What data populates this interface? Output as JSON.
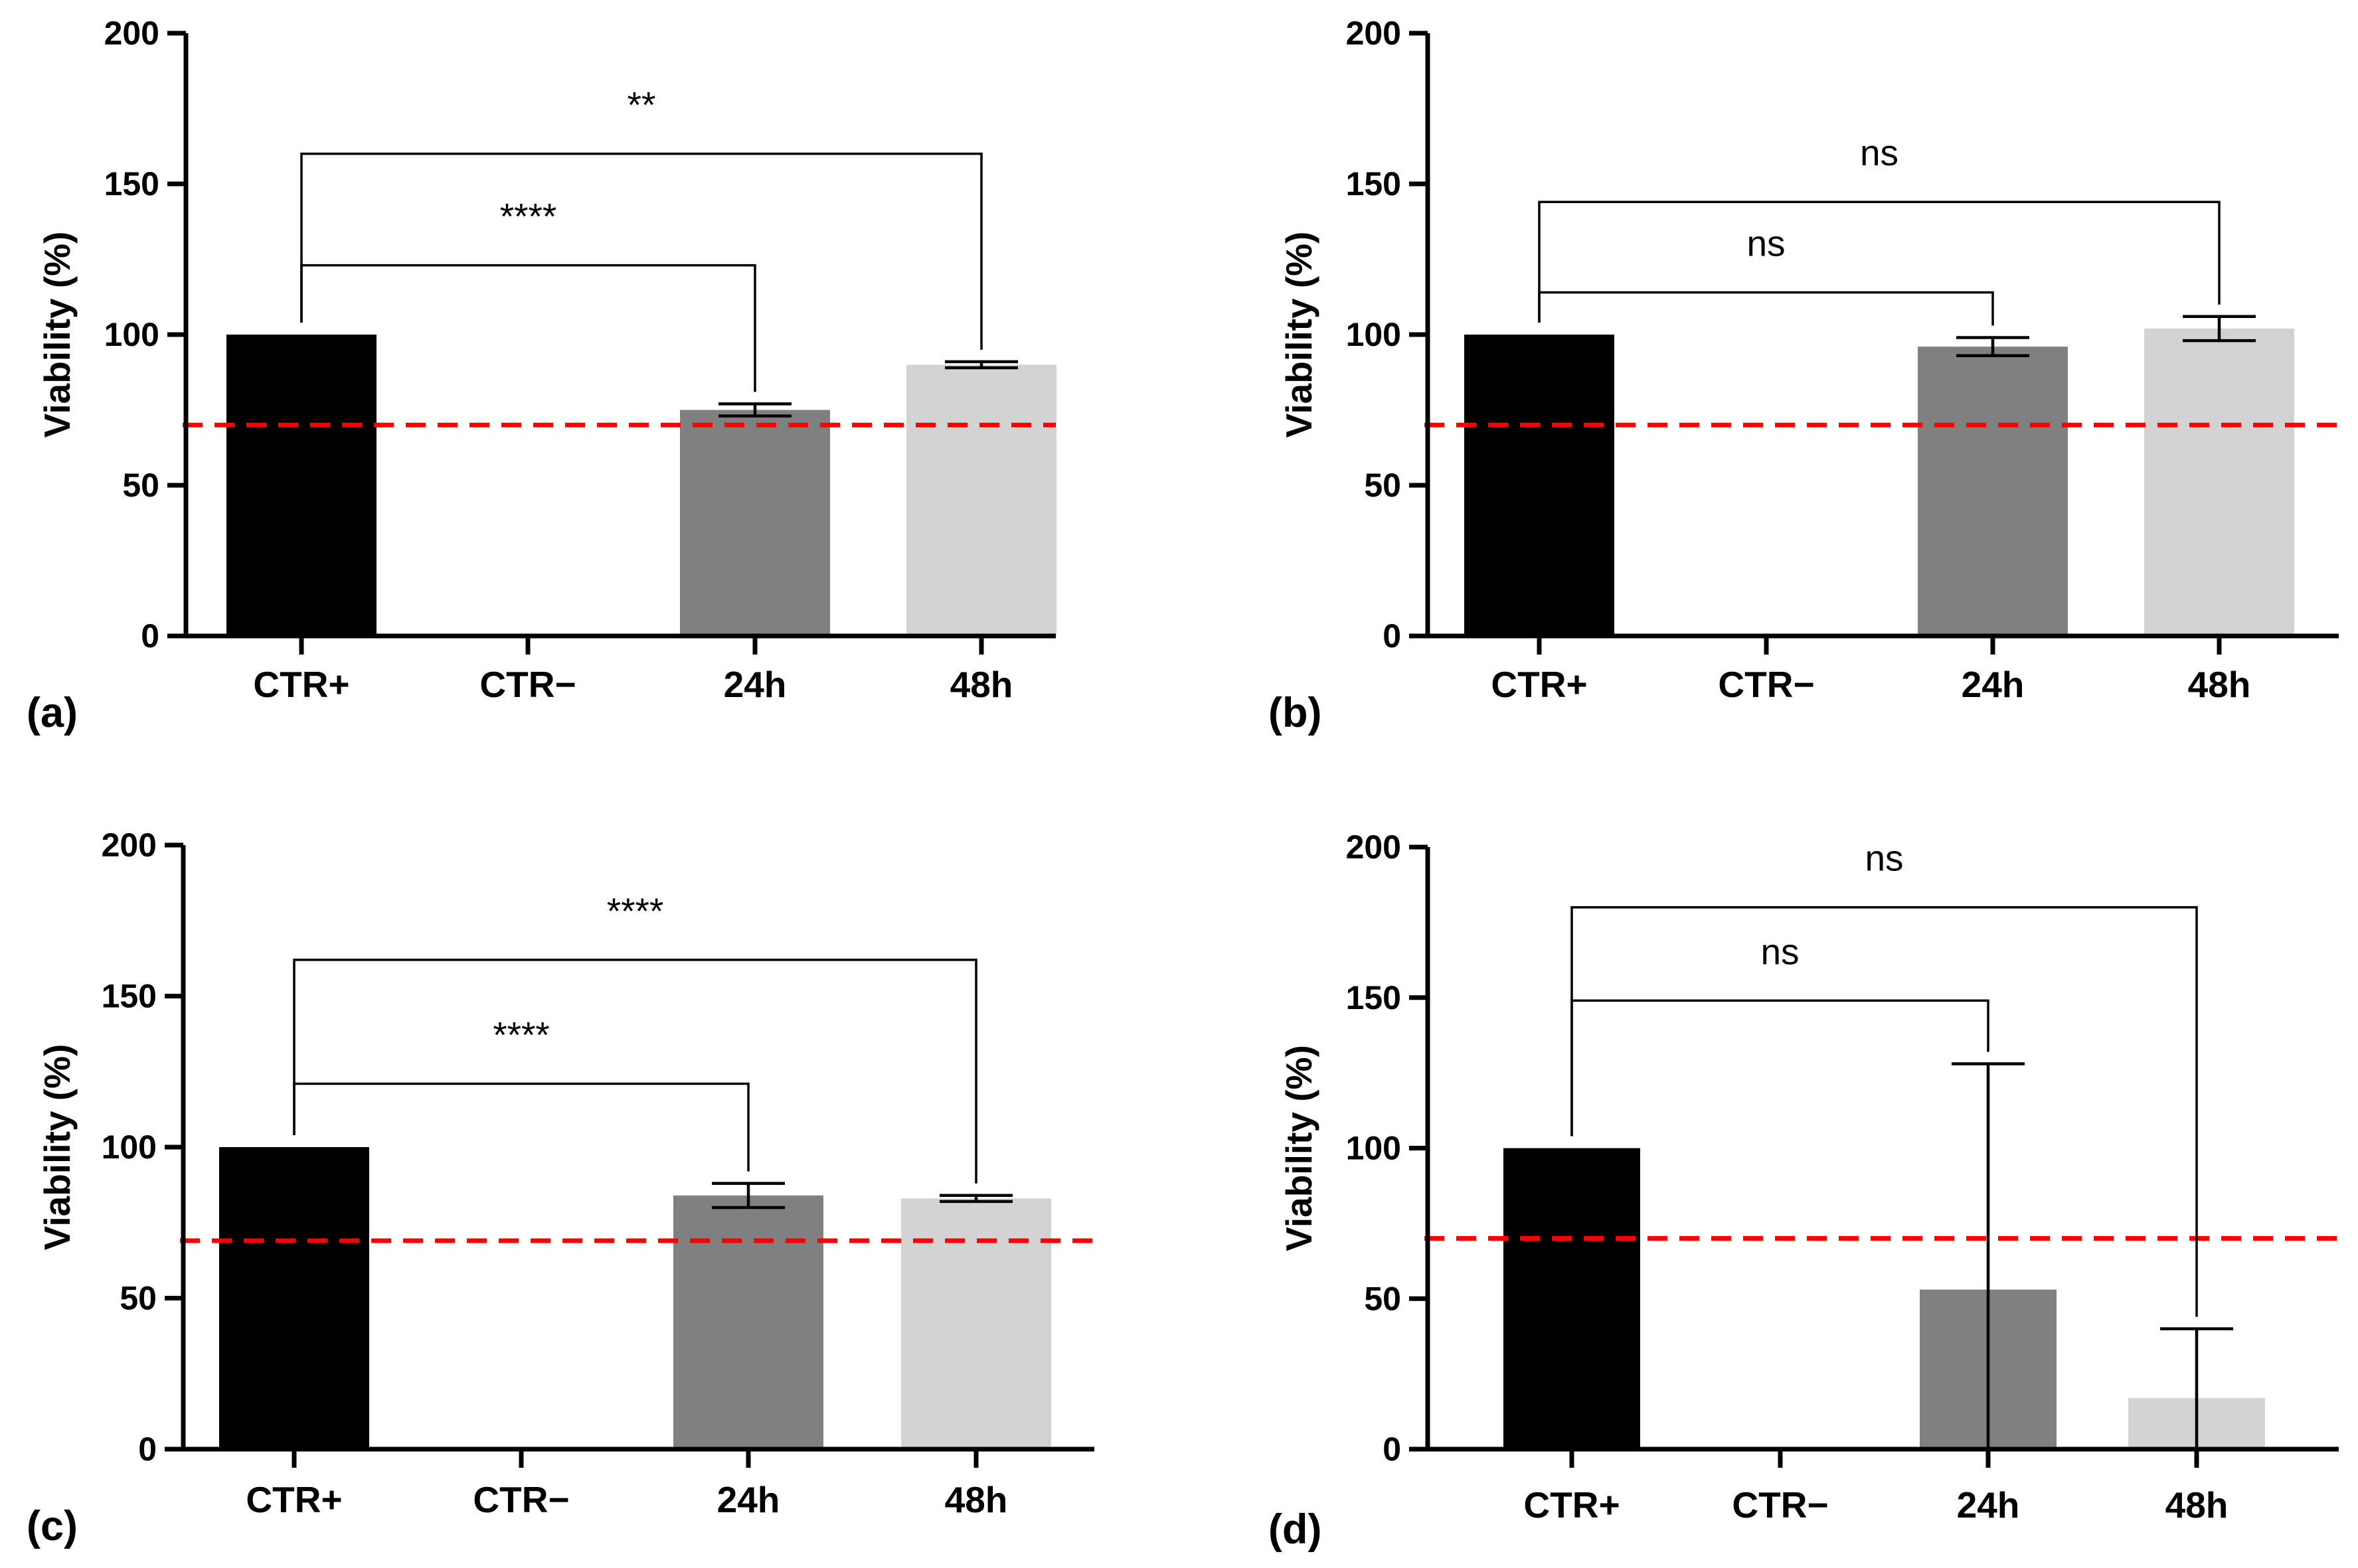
{
  "chart_data": [
    {
      "type": "bar",
      "panel_label": "(a)",
      "ylabel": "Viability (%)",
      "ylim": [
        0,
        200
      ],
      "yticks": [
        0,
        50,
        100,
        150,
        200
      ],
      "categories": [
        "CTR+",
        "CTR−",
        "24h",
        "48h"
      ],
      "values": [
        100,
        0,
        75,
        90
      ],
      "errors": [
        0,
        0,
        2,
        1
      ],
      "colors": [
        "#000000",
        "#ffffff",
        "#808080",
        "#d3d3d3"
      ],
      "threshold": 70,
      "threshold_color": "#ff0000",
      "comparisons": [
        {
          "from": 0,
          "to": 2,
          "label": "****",
          "level": 123
        },
        {
          "from": 0,
          "to": 3,
          "label": "**",
          "level": 160
        }
      ]
    },
    {
      "type": "bar",
      "panel_label": "(b)",
      "ylabel": "Viability (%)",
      "ylim": [
        0,
        200
      ],
      "yticks": [
        0,
        50,
        100,
        150,
        200
      ],
      "categories": [
        "CTR+",
        "CTR−",
        "24h",
        "48h"
      ],
      "values": [
        100,
        0,
        96,
        102
      ],
      "errors": [
        0,
        0,
        3,
        4
      ],
      "colors": [
        "#000000",
        "#ffffff",
        "#808080",
        "#d3d3d3"
      ],
      "threshold": 70,
      "threshold_color": "#ff0000",
      "comparisons": [
        {
          "from": 0,
          "to": 2,
          "label": "ns",
          "level": 114
        },
        {
          "from": 0,
          "to": 3,
          "label": "ns",
          "level": 144
        }
      ]
    },
    {
      "type": "bar",
      "panel_label": "(c)",
      "ylabel": "Viability (%)",
      "ylim": [
        0,
        200
      ],
      "yticks": [
        0,
        50,
        100,
        150,
        200
      ],
      "categories": [
        "CTR+",
        "CTR−",
        "24h",
        "48h"
      ],
      "values": [
        100,
        0,
        84,
        83
      ],
      "errors": [
        0,
        0,
        4,
        1
      ],
      "colors": [
        "#000000",
        "#ffffff",
        "#808080",
        "#d3d3d3"
      ],
      "threshold": 69,
      "threshold_color": "#ff0000",
      "comparisons": [
        {
          "from": 0,
          "to": 2,
          "label": "****",
          "level": 121
        },
        {
          "from": 0,
          "to": 3,
          "label": "****",
          "level": 162
        }
      ]
    },
    {
      "type": "bar",
      "panel_label": "(d)",
      "ylabel": "Viability (%)",
      "ylim": [
        0,
        200
      ],
      "yticks": [
        0,
        50,
        100,
        150,
        200
      ],
      "categories": [
        "CTR+",
        "CTR−",
        "24h",
        "48h"
      ],
      "values": [
        100,
        0,
        53,
        17
      ],
      "errors": [
        0,
        0,
        75,
        23
      ],
      "colors": [
        "#000000",
        "#ffffff",
        "#808080",
        "#d3d3d3"
      ],
      "threshold": 70,
      "threshold_color": "#ff0000",
      "comparisons": [
        {
          "from": 0,
          "to": 2,
          "label": "ns",
          "level": 149
        },
        {
          "from": 0,
          "to": 3,
          "label": "ns",
          "level": 180
        }
      ]
    }
  ]
}
